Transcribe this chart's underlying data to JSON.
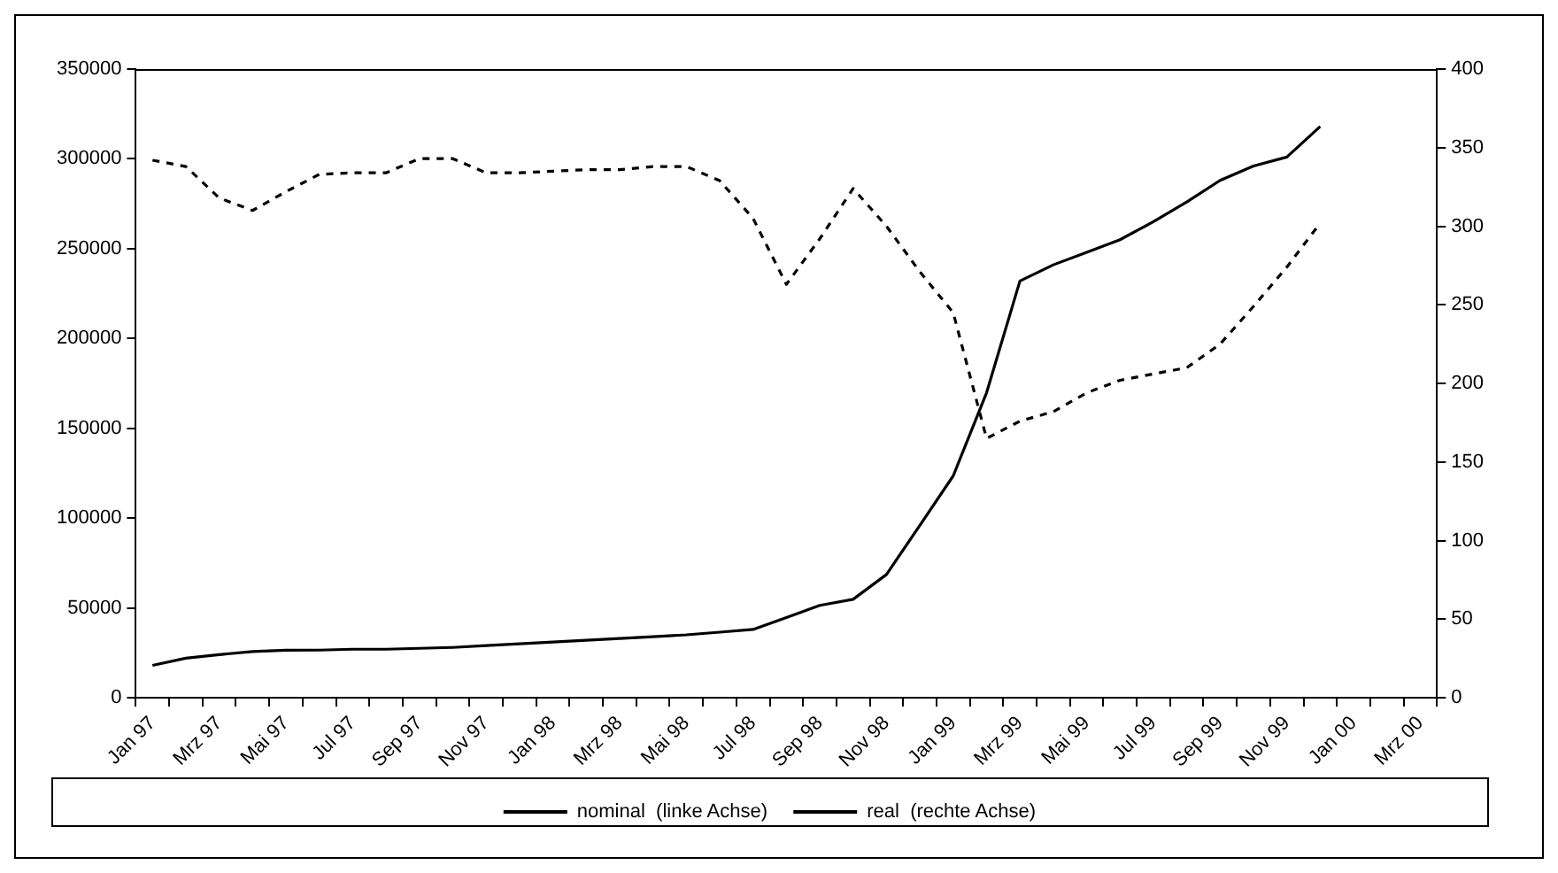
{
  "chart_data": {
    "type": "line",
    "categories": [
      "Jan 97",
      null,
      "Mrz 97",
      null,
      "Mai 97",
      null,
      "Jul 97",
      null,
      "Sep 97",
      null,
      "Nov 97",
      null,
      "Jan 98",
      null,
      "Mrz 98",
      null,
      "Mai 98",
      null,
      "Jul 98",
      null,
      "Sep 98",
      null,
      "Nov 98",
      null,
      "Jan 99",
      null,
      "Mrz 99",
      null,
      "Mai 99",
      null,
      "Jul 99",
      null,
      "Sep 99",
      null,
      "Nov 99",
      null,
      "Jan 00",
      null,
      "Mrz 00"
    ],
    "series": [
      {
        "name": "nominal  (linke Achse)",
        "color": "#000000",
        "line_style": "solid",
        "values": [
          18000,
          22000,
          24000,
          25700,
          26400,
          26500,
          27000,
          27000,
          27500,
          28000,
          29000,
          30000,
          31000,
          32000,
          33000,
          34000,
          35000,
          36500,
          38000,
          44600,
          51400,
          54800,
          68600,
          96000,
          123500,
          169800,
          232000,
          241000,
          248000,
          255000,
          265000,
          276000,
          288000,
          296000,
          301000,
          318000,
          null,
          null,
          null
        ]
      },
      {
        "name": "real  (rechte Achse)",
        "color": "#000000",
        "line_style": "dashed",
        "axis": "y2",
        "values": [
          342,
          338,
          318,
          310,
          322,
          333,
          334,
          334,
          343,
          343,
          334,
          334,
          335,
          336,
          336,
          338,
          338,
          329,
          305,
          263,
          292,
          324,
          300,
          271,
          245,
          165,
          176,
          182,
          194,
          202,
          206,
          210,
          225,
          249,
          274,
          302,
          null,
          null,
          null
        ]
      }
    ],
    "ylim": [
      0,
      350000
    ],
    "yticks": [
      0,
      50000,
      100000,
      150000,
      200000,
      250000,
      300000,
      350000
    ],
    "y2lim": [
      0,
      400
    ],
    "y2ticks": [
      0,
      50,
      100,
      150,
      200,
      250,
      300,
      350,
      400
    ],
    "grid": false,
    "legend": "bottom",
    "marker": "none"
  }
}
